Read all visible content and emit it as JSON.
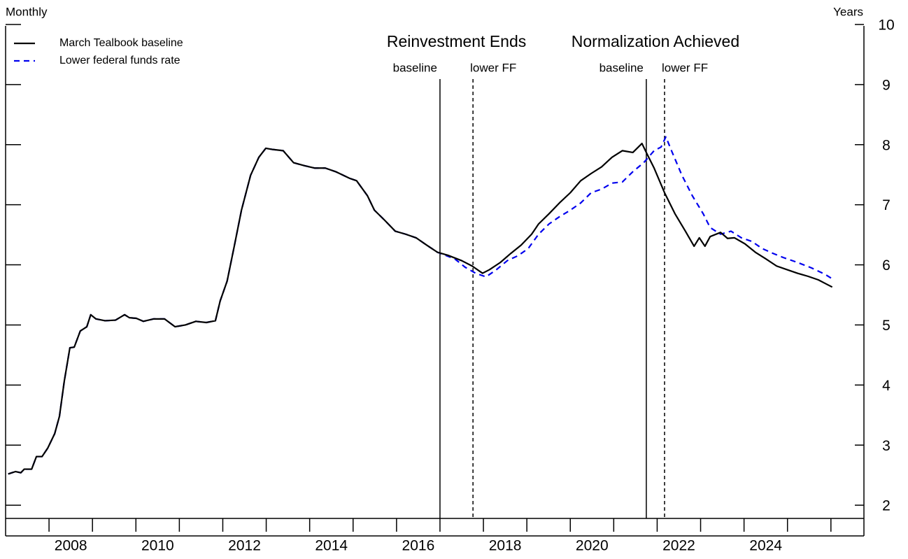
{
  "chart_data": {
    "type": "line",
    "x_label": "Monthly",
    "y_label": "Years",
    "xlim": [
      2007.0,
      2026.76
    ],
    "ylim": [
      1.78,
      10
    ],
    "xticks": [
      2008,
      2010,
      2012,
      2014,
      2016,
      2018,
      2020,
      2022,
      2024
    ],
    "xminor_ticks": [
      2009,
      2011,
      2013,
      2015,
      2017,
      2019,
      2021,
      2023,
      2025,
      2026
    ],
    "yticks": [
      2,
      3,
      4,
      5,
      6,
      7,
      8,
      9,
      10
    ],
    "legend": "top-left",
    "events": [
      {
        "title": "Reinvestment Ends",
        "lines": [
          {
            "x": 2017.0,
            "label": "baseline",
            "dash": false
          },
          {
            "x": 2017.76,
            "label": "lower FF",
            "dash": true
          }
        ]
      },
      {
        "title": "Normalization Achieved",
        "lines": [
          {
            "x": 2021.75,
            "label": "baseline",
            "dash": false
          },
          {
            "x": 2022.17,
            "label": "lower FF",
            "dash": true
          }
        ]
      }
    ],
    "series": [
      {
        "name": "March Tealbook baseline",
        "color": "#000000",
        "dash": false,
        "x": [
          2007.06,
          2007.23,
          2007.35,
          2007.43,
          2007.6,
          2007.71,
          2007.84,
          2007.97,
          2008.13,
          2008.24,
          2008.35,
          2008.48,
          2008.58,
          2008.72,
          2008.87,
          2008.96,
          2009.08,
          2009.29,
          2009.53,
          2009.74,
          2009.85,
          2010.01,
          2010.17,
          2010.41,
          2010.66,
          2010.9,
          2011.14,
          2011.38,
          2011.62,
          2011.83,
          2011.94,
          2012.1,
          2012.27,
          2012.43,
          2012.64,
          2012.83,
          2012.99,
          2013.15,
          2013.39,
          2013.63,
          2013.88,
          2014.12,
          2014.36,
          2014.6,
          2014.92,
          2015.08,
          2015.33,
          2015.49,
          2015.73,
          2015.97,
          2016.21,
          2016.45,
          2016.69,
          2016.94,
          2017.18,
          2017.5,
          2017.74,
          2017.98,
          2018.14,
          2018.39,
          2018.63,
          2018.87,
          2019.11,
          2019.27,
          2019.51,
          2019.75,
          2020.0,
          2020.24,
          2020.48,
          2020.72,
          2020.96,
          2021.2,
          2021.44,
          2021.65,
          2021.77,
          2021.93,
          2022.17,
          2022.41,
          2022.65,
          2022.85,
          2022.97,
          2023.1,
          2023.22,
          2023.46,
          2023.62,
          2023.78,
          2024.02,
          2024.26,
          2024.5,
          2024.75,
          2024.99,
          2025.23,
          2025.47,
          2025.71,
          2025.87,
          2026.03
        ],
        "values": [
          2.52,
          2.56,
          2.54,
          2.6,
          2.6,
          2.81,
          2.81,
          2.95,
          3.19,
          3.48,
          4.06,
          4.62,
          4.63,
          4.9,
          4.97,
          5.17,
          5.1,
          5.07,
          5.08,
          5.17,
          5.12,
          5.11,
          5.06,
          5.1,
          5.1,
          4.97,
          5.0,
          5.06,
          5.04,
          5.07,
          5.4,
          5.73,
          6.33,
          6.91,
          7.49,
          7.79,
          7.94,
          7.92,
          7.9,
          7.7,
          7.65,
          7.61,
          7.61,
          7.55,
          7.44,
          7.4,
          7.15,
          6.91,
          6.74,
          6.56,
          6.51,
          6.45,
          6.33,
          6.21,
          6.16,
          6.07,
          5.98,
          5.86,
          5.92,
          6.04,
          6.19,
          6.33,
          6.51,
          6.68,
          6.85,
          7.03,
          7.2,
          7.4,
          7.52,
          7.63,
          7.79,
          7.9,
          7.87,
          8.02,
          7.84,
          7.61,
          7.2,
          6.85,
          6.56,
          6.31,
          6.45,
          6.31,
          6.47,
          6.54,
          6.44,
          6.45,
          6.35,
          6.21,
          6.1,
          5.98,
          5.92,
          5.86,
          5.81,
          5.75,
          5.69,
          5.63
        ]
      },
      {
        "name": "Lower federal funds rate",
        "color": "#0000ee",
        "dash": true,
        "x": [
          2007.06,
          2007.23,
          2007.35,
          2007.43,
          2007.6,
          2007.71,
          2007.84,
          2007.97,
          2008.13,
          2008.24,
          2008.35,
          2008.48,
          2008.58,
          2008.72,
          2008.87,
          2008.96,
          2009.08,
          2009.29,
          2009.53,
          2009.74,
          2009.85,
          2010.01,
          2010.17,
          2010.41,
          2010.66,
          2010.9,
          2011.14,
          2011.38,
          2011.62,
          2011.83,
          2011.94,
          2012.1,
          2012.27,
          2012.43,
          2012.64,
          2012.83,
          2012.99,
          2013.15,
          2013.39,
          2013.63,
          2013.88,
          2014.12,
          2014.36,
          2014.6,
          2014.92,
          2015.08,
          2015.33,
          2015.49,
          2015.73,
          2015.97,
          2016.21,
          2016.45,
          2016.69,
          2016.94,
          2017.34,
          2017.58,
          2017.82,
          2018.06,
          2018.3,
          2018.55,
          2018.79,
          2019.03,
          2019.27,
          2019.51,
          2019.75,
          2020.0,
          2020.24,
          2020.48,
          2020.72,
          2020.96,
          2021.2,
          2021.44,
          2021.69,
          2021.93,
          2022.09,
          2022.2,
          2022.33,
          2022.57,
          2022.81,
          2023.06,
          2023.22,
          2023.46,
          2023.7,
          2023.94,
          2024.18,
          2024.42,
          2024.67,
          2024.91,
          2025.23,
          2025.55,
          2025.87,
          2026.07
        ],
        "values": [
          2.52,
          2.56,
          2.54,
          2.6,
          2.6,
          2.81,
          2.81,
          2.95,
          3.19,
          3.48,
          4.06,
          4.62,
          4.63,
          4.9,
          4.97,
          5.17,
          5.1,
          5.07,
          5.08,
          5.17,
          5.12,
          5.11,
          5.06,
          5.1,
          5.1,
          4.97,
          5.0,
          5.06,
          5.04,
          5.07,
          5.4,
          5.73,
          6.33,
          6.91,
          7.49,
          7.79,
          7.94,
          7.92,
          7.9,
          7.7,
          7.65,
          7.61,
          7.61,
          7.55,
          7.44,
          7.4,
          7.15,
          6.91,
          6.74,
          6.56,
          6.51,
          6.45,
          6.33,
          6.21,
          6.1,
          5.96,
          5.86,
          5.8,
          5.92,
          6.07,
          6.15,
          6.27,
          6.51,
          6.68,
          6.8,
          6.91,
          7.03,
          7.2,
          7.26,
          7.36,
          7.38,
          7.55,
          7.7,
          7.9,
          7.96,
          8.13,
          7.9,
          7.49,
          7.15,
          6.85,
          6.62,
          6.51,
          6.56,
          6.45,
          6.39,
          6.27,
          6.19,
          6.12,
          6.04,
          5.95,
          5.84,
          5.75
        ]
      }
    ]
  }
}
